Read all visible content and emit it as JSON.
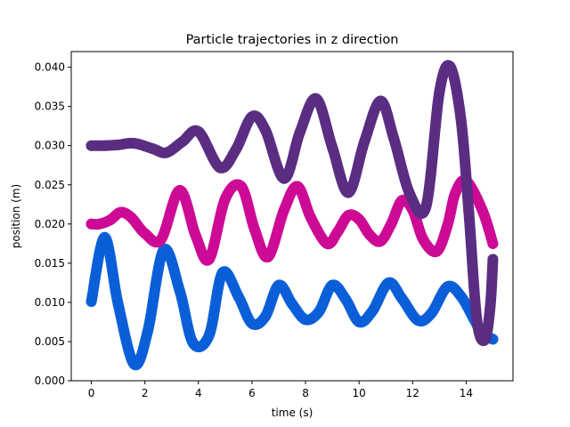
{
  "chart_data": {
    "type": "scatter",
    "title": "Particle trajectories in z direction",
    "xlabel": "time (s)",
    "ylabel": "position (m)",
    "xlim": [
      -0.75,
      15.75
    ],
    "ylim": [
      0.0,
      0.042
    ],
    "xticks": [
      0,
      2,
      4,
      6,
      8,
      10,
      12,
      14
    ],
    "xtick_labels": [
      "0",
      "2",
      "4",
      "6",
      "8",
      "10",
      "12",
      "14"
    ],
    "yticks": [
      0.0,
      0.005,
      0.01,
      0.015,
      0.02,
      0.025,
      0.03,
      0.035,
      0.04
    ],
    "ytick_labels": [
      "0.000",
      "0.005",
      "0.010",
      "0.015",
      "0.020",
      "0.025",
      "0.030",
      "0.035",
      "0.040"
    ],
    "grid": false,
    "legend": "none",
    "series": [
      {
        "color": "#0a5fd9",
        "x": [
          0.0,
          0.5,
          1.0,
          1.6,
          2.1,
          2.7,
          3.3,
          3.8,
          4.4,
          4.9,
          5.5,
          6.0,
          6.5,
          7.0,
          7.5,
          8.0,
          8.5,
          9.0,
          9.5,
          10.0,
          10.5,
          11.1,
          11.6,
          12.2,
          12.7,
          13.3,
          13.8,
          14.3,
          14.6,
          15.0
        ],
        "y": [
          0.0101,
          0.0183,
          0.0098,
          0.0021,
          0.0062,
          0.0167,
          0.0115,
          0.0048,
          0.0058,
          0.0138,
          0.0107,
          0.0073,
          0.0082,
          0.0122,
          0.0098,
          0.0078,
          0.0088,
          0.0122,
          0.0104,
          0.0075,
          0.0089,
          0.0125,
          0.0105,
          0.0077,
          0.0086,
          0.012,
          0.0108,
          0.0078,
          0.006,
          0.0053
        ]
      },
      {
        "color": "#cc0a96",
        "x": [
          0.0,
          0.3,
          0.7,
          1.1,
          1.5,
          2.0,
          2.6,
          3.3,
          3.9,
          4.4,
          5.0,
          5.6,
          6.1,
          6.6,
          7.2,
          7.7,
          8.2,
          8.8,
          9.2,
          9.6,
          10.0,
          10.4,
          10.8,
          11.2,
          11.6,
          12.0,
          12.4,
          12.9,
          13.3,
          13.6,
          14.0,
          14.6,
          15.0
        ],
        "y": [
          0.02,
          0.02,
          0.0205,
          0.0215,
          0.0208,
          0.0188,
          0.018,
          0.0243,
          0.0185,
          0.0155,
          0.0232,
          0.0248,
          0.0193,
          0.0158,
          0.0218,
          0.0248,
          0.0208,
          0.0175,
          0.019,
          0.0211,
          0.0206,
          0.0186,
          0.0178,
          0.02,
          0.023,
          0.0218,
          0.018,
          0.0165,
          0.0198,
          0.024,
          0.0255,
          0.0218,
          0.0175
        ]
      },
      {
        "color": "#5a2d82",
        "x": [
          0.0,
          0.5,
          1.0,
          1.6,
          2.3,
          2.8,
          3.4,
          4.0,
          4.8,
          5.4,
          6.0,
          6.5,
          7.2,
          7.8,
          8.4,
          9.0,
          9.6,
          10.2,
          10.8,
          11.3,
          11.9,
          12.5,
          13.0,
          13.4,
          13.8,
          14.1,
          14.4,
          14.7,
          14.9,
          15.0
        ],
        "y": [
          0.03,
          0.03,
          0.0301,
          0.0303,
          0.0296,
          0.0291,
          0.0305,
          0.0318,
          0.0272,
          0.0295,
          0.0337,
          0.032,
          0.0258,
          0.0318,
          0.036,
          0.0298,
          0.024,
          0.0305,
          0.0357,
          0.0309,
          0.0238,
          0.0222,
          0.0368,
          0.0401,
          0.0335,
          0.0215,
          0.0078,
          0.0052,
          0.0095,
          0.0155
        ]
      }
    ]
  }
}
